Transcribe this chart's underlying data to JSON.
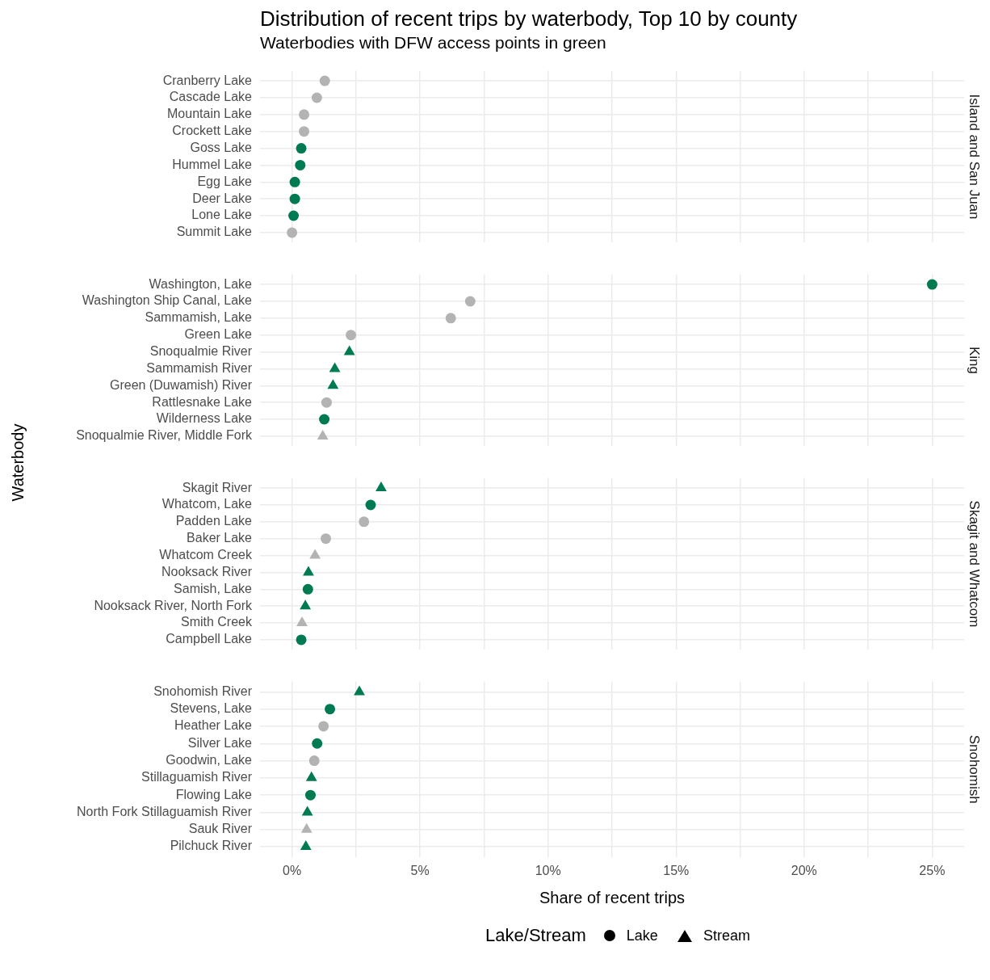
{
  "chart_data": [
    {
      "type": "scatter",
      "title": "Distribution of recent trips by waterbody, Top 10 by county",
      "subtitle": "Waterbodies with DFW access points in green",
      "y2label": "Island and San Juan",
      "orientation": "horizontal",
      "grid": true,
      "tick_labels": "y",
      "xlim": [
        -1.25,
        26.25
      ],
      "xticks": [
        {
          "value": 0,
          "label": null
        },
        {
          "value": 2.5,
          "label": null
        },
        {
          "value": 5,
          "label": null
        },
        {
          "value": 7.5,
          "label": null
        },
        {
          "value": 10,
          "label": null
        },
        {
          "value": 12.5,
          "label": null
        },
        {
          "value": 15,
          "label": null
        },
        {
          "value": 17.5,
          "label": null
        },
        {
          "value": 20,
          "label": null
        },
        {
          "value": 22.5,
          "label": null
        },
        {
          "value": 25,
          "label": null
        }
      ],
      "categories": [
        "Cranberry Lake",
        "Cascade Lake",
        "Mountain Lake",
        "Crockett Lake",
        "Goss Lake",
        "Hummel Lake",
        "Egg Lake",
        "Deer Lake",
        "Lone Lake",
        "Summit Lake"
      ],
      "series": [
        {
          "marker": "circle",
          "values": [
            1.28,
            0.97,
            0.47,
            0.47,
            0.36,
            0.32,
            0.11,
            0.11,
            0.06,
            0.0
          ],
          "colors": [
            "#b3b3b3",
            "#b3b3b3",
            "#b3b3b3",
            "#b3b3b3",
            "#007a53",
            "#007a53",
            "#007a53",
            "#007a53",
            "#007a53",
            "#b3b3b3"
          ]
        }
      ]
    },
    {
      "type": "scatter",
      "ylabel": "Waterbody",
      "y2label": "King",
      "orientation": "horizontal",
      "grid": true,
      "tick_labels": "y",
      "xlim": [
        -1.25,
        26.25
      ],
      "xticks": [
        {
          "value": 0,
          "label": null
        },
        {
          "value": 2.5,
          "label": null
        },
        {
          "value": 5,
          "label": null
        },
        {
          "value": 7.5,
          "label": null
        },
        {
          "value": 10,
          "label": null
        },
        {
          "value": 12.5,
          "label": null
        },
        {
          "value": 15,
          "label": null
        },
        {
          "value": 17.5,
          "label": null
        },
        {
          "value": 20,
          "label": null
        },
        {
          "value": 22.5,
          "label": null
        },
        {
          "value": 25,
          "label": null
        }
      ],
      "categories": [
        "Washington, Lake",
        "Washington Ship Canal, Lake",
        "Sammamish, Lake",
        "Green Lake",
        "Snoqualmie River",
        "Sammamish River",
        "Green (Duwamish) River",
        "Rattlesnake Lake",
        "Wilderness Lake",
        "Snoqualmie River, Middle Fork"
      ],
      "series": [
        {
          "marker": "circle",
          "values": [
            25.0,
            6.96,
            6.2,
            2.3,
            null,
            null,
            null,
            1.35,
            1.26,
            null
          ],
          "colors": [
            "#007a53",
            "#b3b3b3",
            "#b3b3b3",
            "#b3b3b3",
            null,
            null,
            null,
            "#b3b3b3",
            "#007a53",
            null
          ]
        },
        {
          "marker": "triangle",
          "values": [
            null,
            null,
            null,
            null,
            2.24,
            1.67,
            1.6,
            null,
            null,
            1.2
          ],
          "colors": [
            null,
            null,
            null,
            null,
            "#007a53",
            "#007a53",
            "#007a53",
            null,
            null,
            "#b3b3b3"
          ]
        }
      ]
    },
    {
      "type": "scatter",
      "y2label": "Skagit and Whatcom",
      "orientation": "horizontal",
      "grid": true,
      "tick_labels": "y",
      "xlim": [
        -1.25,
        26.25
      ],
      "xticks": [
        {
          "value": 0,
          "label": null
        },
        {
          "value": 2.5,
          "label": null
        },
        {
          "value": 5,
          "label": null
        },
        {
          "value": 7.5,
          "label": null
        },
        {
          "value": 10,
          "label": null
        },
        {
          "value": 12.5,
          "label": null
        },
        {
          "value": 15,
          "label": null
        },
        {
          "value": 17.5,
          "label": null
        },
        {
          "value": 20,
          "label": null
        },
        {
          "value": 22.5,
          "label": null
        },
        {
          "value": 25,
          "label": null
        }
      ],
      "categories": [
        "Skagit River",
        "Whatcom, Lake",
        "Padden Lake",
        "Baker Lake",
        "Whatcom Creek",
        "Nooksack River",
        "Samish, Lake",
        "Nooksack River, North Fork",
        "Smith Creek",
        "Campbell Lake"
      ],
      "series": [
        {
          "marker": "circle",
          "values": [
            null,
            3.07,
            2.81,
            1.32,
            null,
            null,
            0.62,
            null,
            null,
            0.36
          ],
          "colors": [
            null,
            "#007a53",
            "#b3b3b3",
            "#b3b3b3",
            null,
            null,
            "#007a53",
            null,
            null,
            "#007a53"
          ]
        },
        {
          "marker": "triangle",
          "values": [
            3.48,
            null,
            null,
            null,
            0.9,
            0.64,
            null,
            0.52,
            0.39,
            null
          ],
          "colors": [
            "#007a53",
            null,
            null,
            null,
            "#b3b3b3",
            "#007a53",
            null,
            "#007a53",
            "#b3b3b3",
            null
          ]
        }
      ]
    },
    {
      "type": "scatter",
      "y2label": "Snohomish",
      "xlabel": "Share of recent trips",
      "legend": "bottom",
      "legend_title": "Lake/Stream",
      "orientation": "horizontal",
      "grid": true,
      "xlim": [
        -1.25,
        26.25
      ],
      "xticks": [
        {
          "value": 0,
          "label": "0%"
        },
        {
          "value": 2.5,
          "label": null
        },
        {
          "value": 5,
          "label": "5%"
        },
        {
          "value": 7.5,
          "label": null
        },
        {
          "value": 10,
          "label": "10%"
        },
        {
          "value": 12.5,
          "label": null
        },
        {
          "value": 15,
          "label": "15%"
        },
        {
          "value": 17.5,
          "label": null
        },
        {
          "value": 20,
          "label": "20%"
        },
        {
          "value": 22.5,
          "label": null
        },
        {
          "value": 25,
          "label": "25%"
        }
      ],
      "categories": [
        "Snohomish River",
        "Stevens, Lake",
        "Heather Lake",
        "Silver Lake",
        "Goodwin, Lake",
        "Stillaguamish River",
        "Flowing Lake",
        "North Fork Stillaguamish River",
        "Sauk River",
        "Pilchuck River"
      ],
      "series": [
        {
          "name": "Lake",
          "marker": "circle",
          "values": [
            null,
            1.48,
            1.23,
            0.98,
            0.87,
            null,
            0.72,
            null,
            null,
            null
          ],
          "colors": [
            null,
            "#007a53",
            "#b3b3b3",
            "#007a53",
            "#b3b3b3",
            null,
            "#007a53",
            null,
            null,
            null
          ]
        },
        {
          "name": "Stream",
          "marker": "triangle",
          "values": [
            2.63,
            null,
            null,
            null,
            null,
            0.76,
            null,
            0.6,
            0.57,
            0.54
          ],
          "colors": [
            "#007a53",
            null,
            null,
            null,
            null,
            "#007a53",
            null,
            "#007a53",
            "#b3b3b3",
            "#007a53"
          ]
        }
      ]
    }
  ]
}
